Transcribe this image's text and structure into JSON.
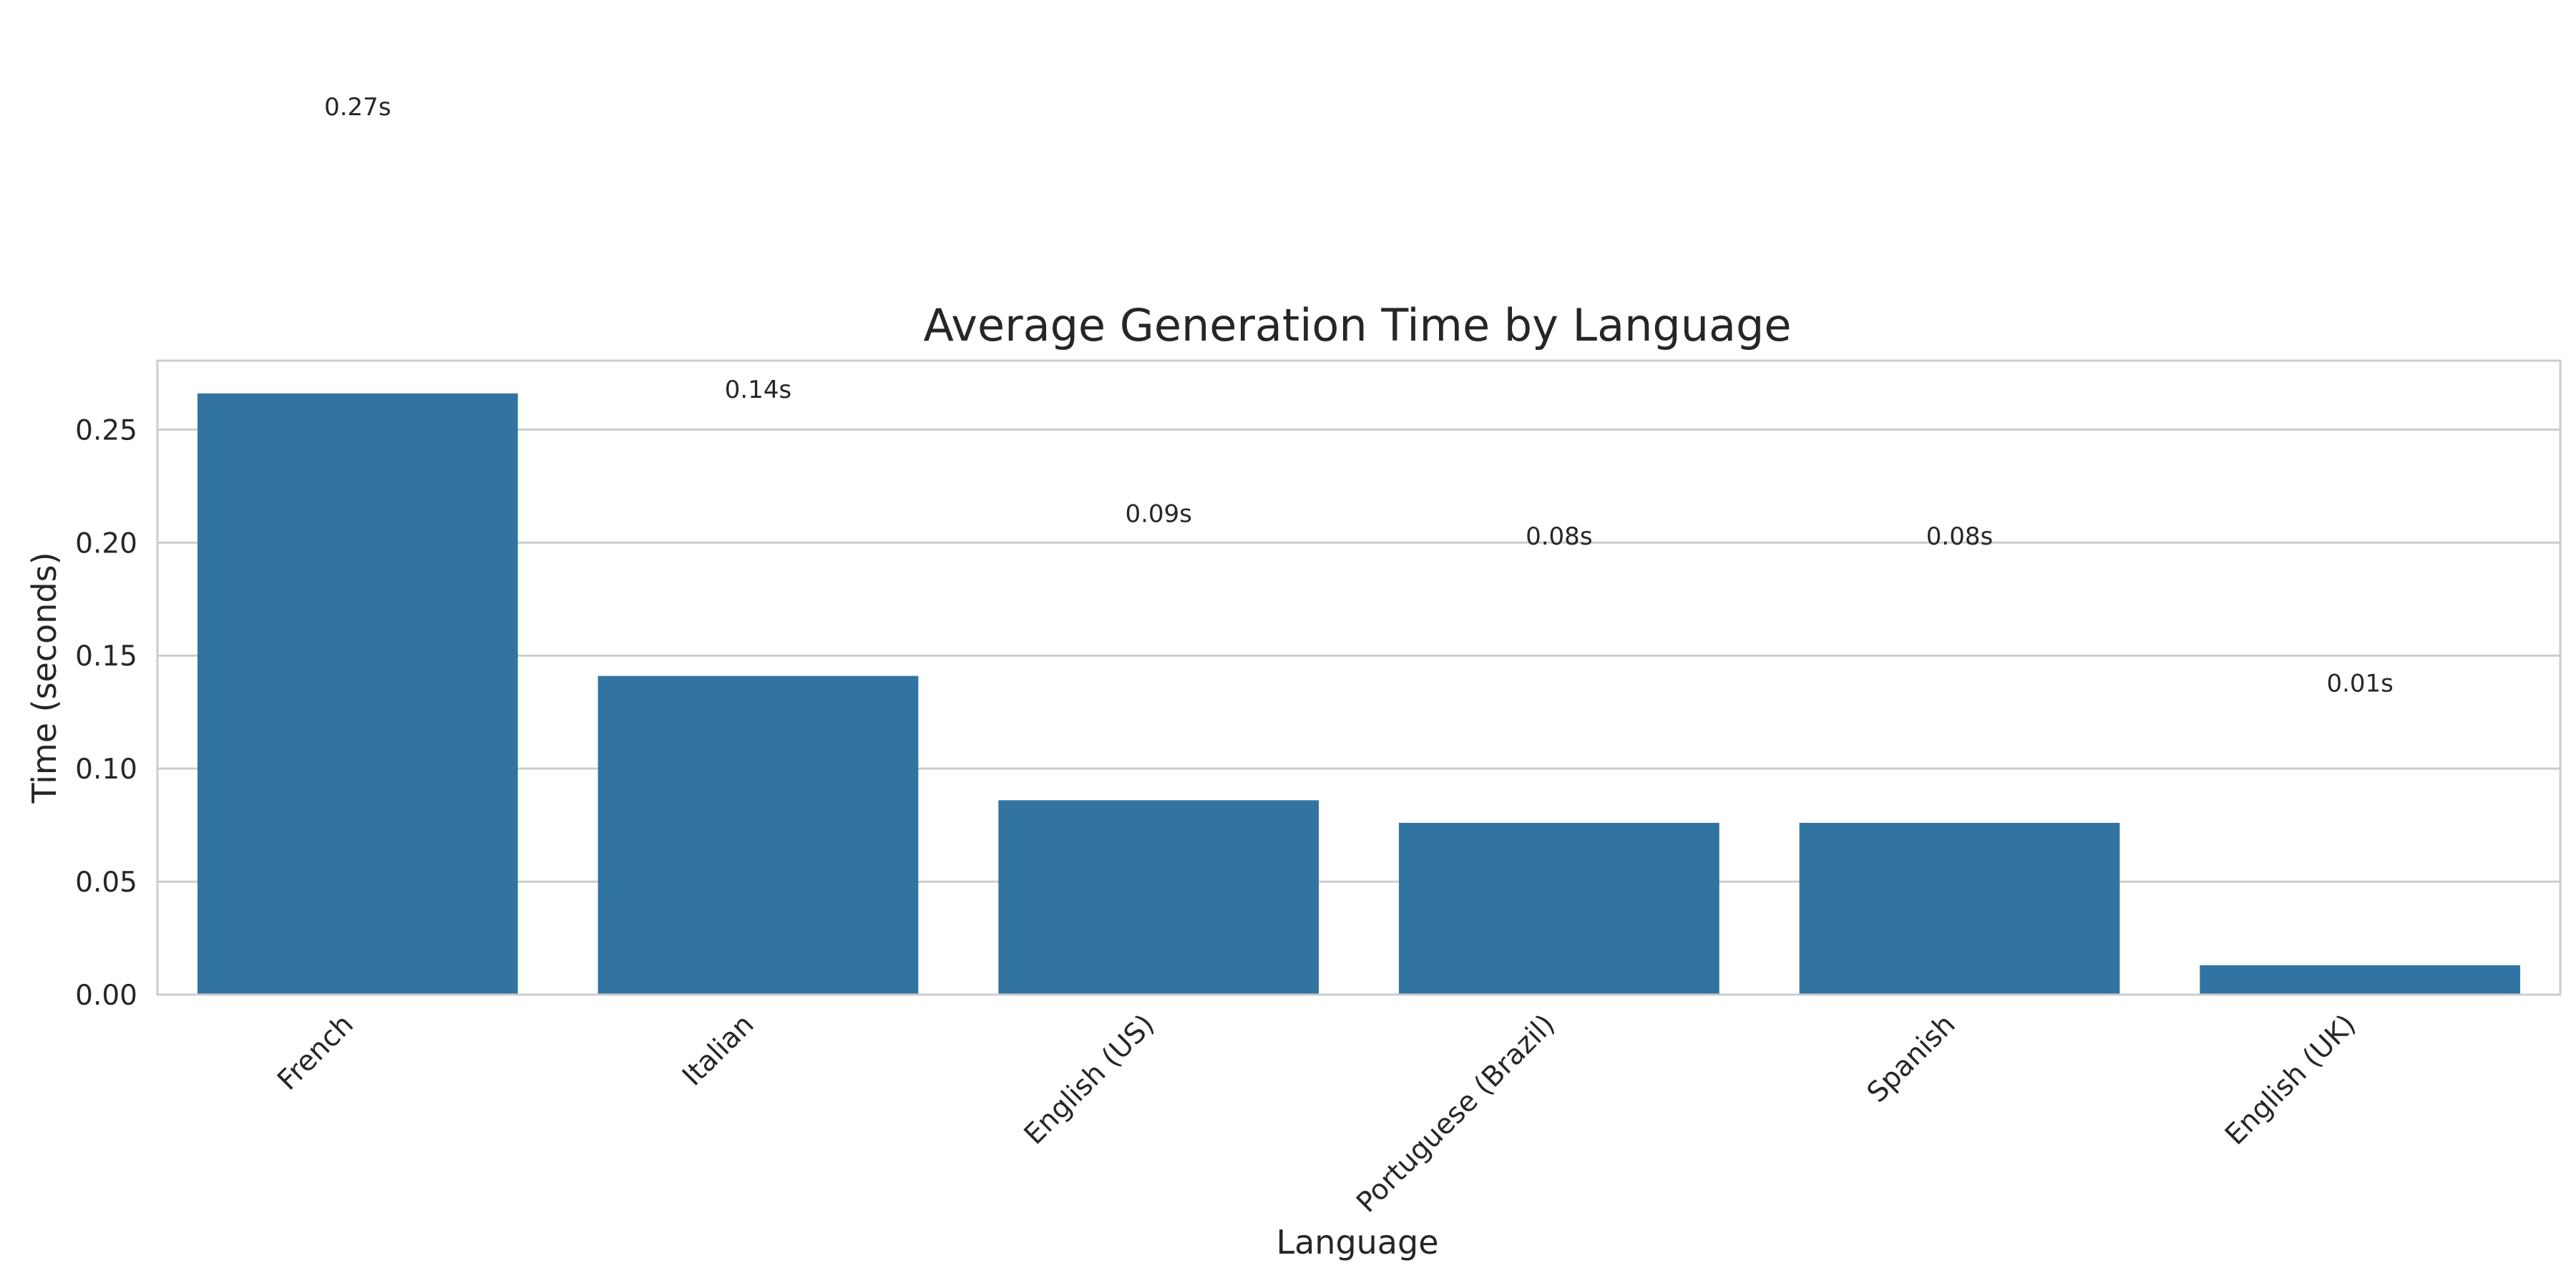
{
  "chart_data": {
    "type": "bar",
    "title": "Average Generation Time by Language",
    "xlabel": "Language",
    "ylabel": "Time (seconds)",
    "categories": [
      "French",
      "Italian",
      "English (US)",
      "Portuguese (Brazil)",
      "Spanish",
      "English (UK)"
    ],
    "values": [
      0.266,
      0.141,
      0.086,
      0.076,
      0.076,
      0.013
    ],
    "data_labels": [
      "0.27s",
      "0.14s",
      "0.09s",
      "0.08s",
      "0.08s",
      "0.01s"
    ],
    "data_label_values": [
      0.3929,
      0.2679,
      0.2129,
      0.2029,
      0.2029,
      0.1379
    ],
    "ylim": [
      0,
      0.2805
    ],
    "yticks": [
      0.0,
      0.05,
      0.1,
      0.15,
      0.2,
      0.25
    ],
    "ytick_labels": [
      "0.00",
      "0.05",
      "0.10",
      "0.15",
      "0.20",
      "0.25"
    ],
    "grid": true,
    "legend": "none",
    "bar_color": "#3274a1",
    "grid_color": "#cccccc",
    "frame_color": "#cccccc"
  }
}
